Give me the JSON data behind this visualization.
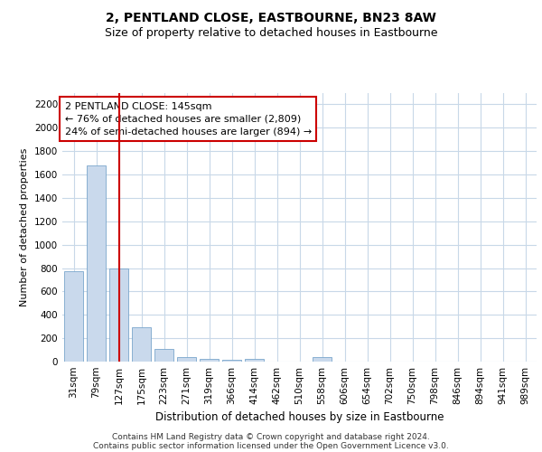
{
  "title": "2, PENTLAND CLOSE, EASTBOURNE, BN23 8AW",
  "subtitle": "Size of property relative to detached houses in Eastbourne",
  "xlabel": "Distribution of detached houses by size in Eastbourne",
  "ylabel": "Number of detached properties",
  "categories": [
    "31sqm",
    "79sqm",
    "127sqm",
    "175sqm",
    "223sqm",
    "271sqm",
    "319sqm",
    "366sqm",
    "414sqm",
    "462sqm",
    "510sqm",
    "558sqm",
    "606sqm",
    "654sqm",
    "702sqm",
    "750sqm",
    "798sqm",
    "846sqm",
    "894sqm",
    "941sqm",
    "989sqm"
  ],
  "values": [
    775,
    1675,
    800,
    290,
    110,
    35,
    20,
    15,
    20,
    0,
    0,
    35,
    0,
    0,
    0,
    0,
    0,
    0,
    0,
    0,
    0
  ],
  "bar_color": "#c9d9ec",
  "bar_edge_color": "#7aa6cc",
  "red_line_index": 2,
  "red_line_color": "#cc0000",
  "annotation_line1": "2 PENTLAND CLOSE: 145sqm",
  "annotation_line2": "← 76% of detached houses are smaller (2,809)",
  "annotation_line3": "24% of semi-detached houses are larger (894) →",
  "annotation_box_color": "#cc0000",
  "ylim": [
    0,
    2300
  ],
  "yticks": [
    0,
    200,
    400,
    600,
    800,
    1000,
    1200,
    1400,
    1600,
    1800,
    2000,
    2200
  ],
  "background_color": "#ffffff",
  "grid_color": "#c8d8e8",
  "footer_line1": "Contains HM Land Registry data © Crown copyright and database right 2024.",
  "footer_line2": "Contains public sector information licensed under the Open Government Licence v3.0.",
  "title_fontsize": 10,
  "subtitle_fontsize": 9,
  "xlabel_fontsize": 8.5,
  "ylabel_fontsize": 8,
  "tick_fontsize": 7.5,
  "annotation_fontsize": 8,
  "footer_fontsize": 6.5
}
